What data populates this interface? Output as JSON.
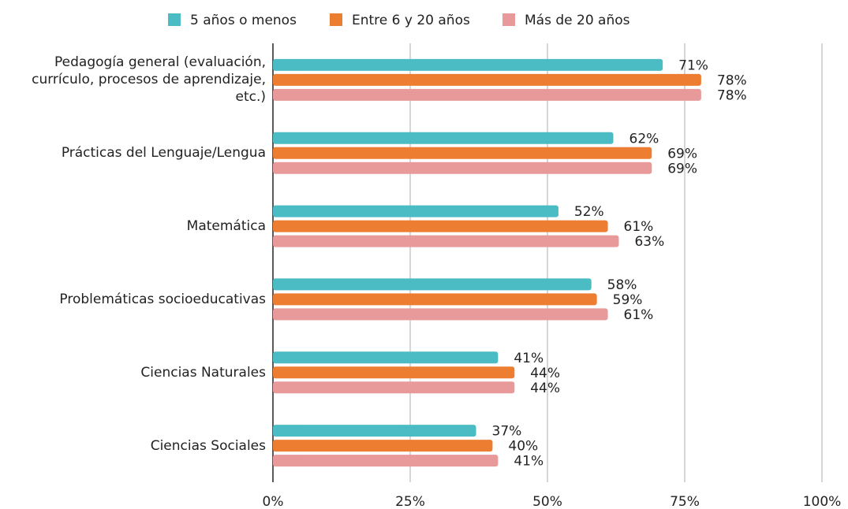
{
  "chart_data": {
    "type": "bar",
    "orientation": "horizontal",
    "categories": [
      "Pedagogía general (evaluación, currículo, procesos de aprendizaje, etc.)",
      "Prácticas del Lenguaje/Lengua",
      "Matemática",
      "Problemáticas socioeducativas",
      "Ciencias Naturales",
      "Ciencias Sociales"
    ],
    "series": [
      {
        "name": "5 años o menos",
        "color": "#4bbcc4",
        "values": [
          71,
          62,
          52,
          58,
          41,
          37
        ],
        "value_labels": [
          "71%",
          "62%",
          "52%",
          "58%",
          "41%",
          "37%"
        ]
      },
      {
        "name": "Entre 6 y 20 años",
        "color": "#ed7d31",
        "values": [
          78,
          69,
          61,
          59,
          44,
          40
        ],
        "value_labels": [
          "78%",
          "69%",
          "61%",
          "59%",
          "44%",
          "40%"
        ]
      },
      {
        "name": "Más de 20 años",
        "color": "#e8999a",
        "values": [
          78,
          69,
          63,
          61,
          44,
          41
        ],
        "value_labels": [
          "78%",
          "69%",
          "63%",
          "61%",
          "44%",
          "41%"
        ]
      }
    ],
    "xlim": [
      0,
      100
    ],
    "xticks": [
      {
        "value": 0,
        "label": "0%"
      },
      {
        "value": 25,
        "label": "25%"
      },
      {
        "value": 50,
        "label": "50%"
      },
      {
        "value": 75,
        "label": "75%"
      },
      {
        "value": 100,
        "label": "100%"
      }
    ],
    "grid": true,
    "legend": "top"
  }
}
